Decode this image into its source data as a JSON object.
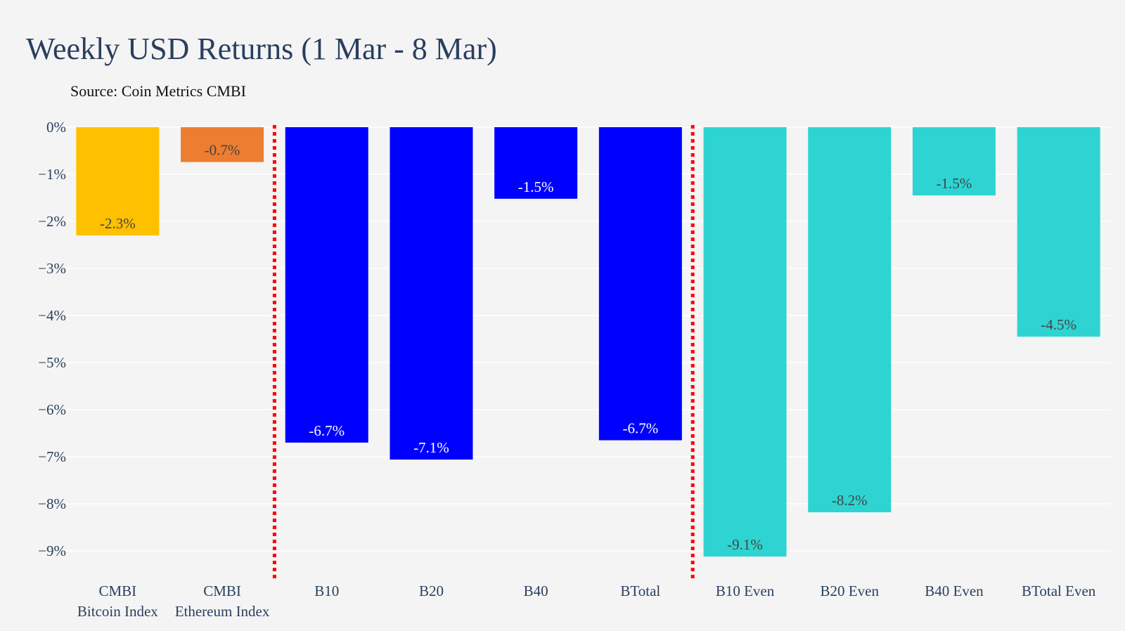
{
  "chart_data": {
    "type": "bar",
    "title": "Weekly USD Returns (1 Mar - 8 Mar)",
    "subtitle": "Source: Coin Metrics CMBI",
    "xlabel": "",
    "ylabel": "",
    "ylim": [
      -9.6,
      0
    ],
    "yticks": [
      0,
      -1,
      -2,
      -3,
      -4,
      -5,
      -6,
      -7,
      -8,
      -9
    ],
    "ytick_labels": [
      "0%",
      "−1%",
      "−2%",
      "−3%",
      "−4%",
      "−5%",
      "−6%",
      "−7%",
      "−8%",
      "−9%"
    ],
    "grid": true,
    "legend": "none",
    "categories": [
      [
        "CMBI",
        "Bitcoin Index"
      ],
      [
        "CMBI",
        "Ethereum Index"
      ],
      [
        "B10"
      ],
      [
        "B20"
      ],
      [
        "B40"
      ],
      [
        "BTotal"
      ],
      [
        "B10 Even"
      ],
      [
        "B20 Even"
      ],
      [
        "B40 Even"
      ],
      [
        "BTotal Even"
      ]
    ],
    "values": [
      -2.3,
      -0.74,
      -6.7,
      -7.06,
      -1.52,
      -6.65,
      -9.12,
      -8.18,
      -1.45,
      -4.45
    ],
    "data_labels": [
      "-2.3%",
      "-0.7%",
      "-6.7%",
      "-7.1%",
      "-1.5%",
      "-6.7%",
      "-9.1%",
      "-8.2%",
      "-1.5%",
      "-4.5%"
    ],
    "colors": [
      "#ffc000",
      "#ed7d31",
      "#0000ff",
      "#0000ff",
      "#0000ff",
      "#0000ff",
      "#2dd4d2",
      "#2dd4d2",
      "#2dd4d2",
      "#2dd4d2"
    ],
    "label_colors": [
      "#444444",
      "#444444",
      "#ffffff",
      "#ffffff",
      "#ffffff",
      "#ffffff",
      "#444444",
      "#444444",
      "#444444",
      "#444444"
    ],
    "separators_after_category": [
      1,
      5
    ],
    "separator_color": "#ff0000"
  }
}
